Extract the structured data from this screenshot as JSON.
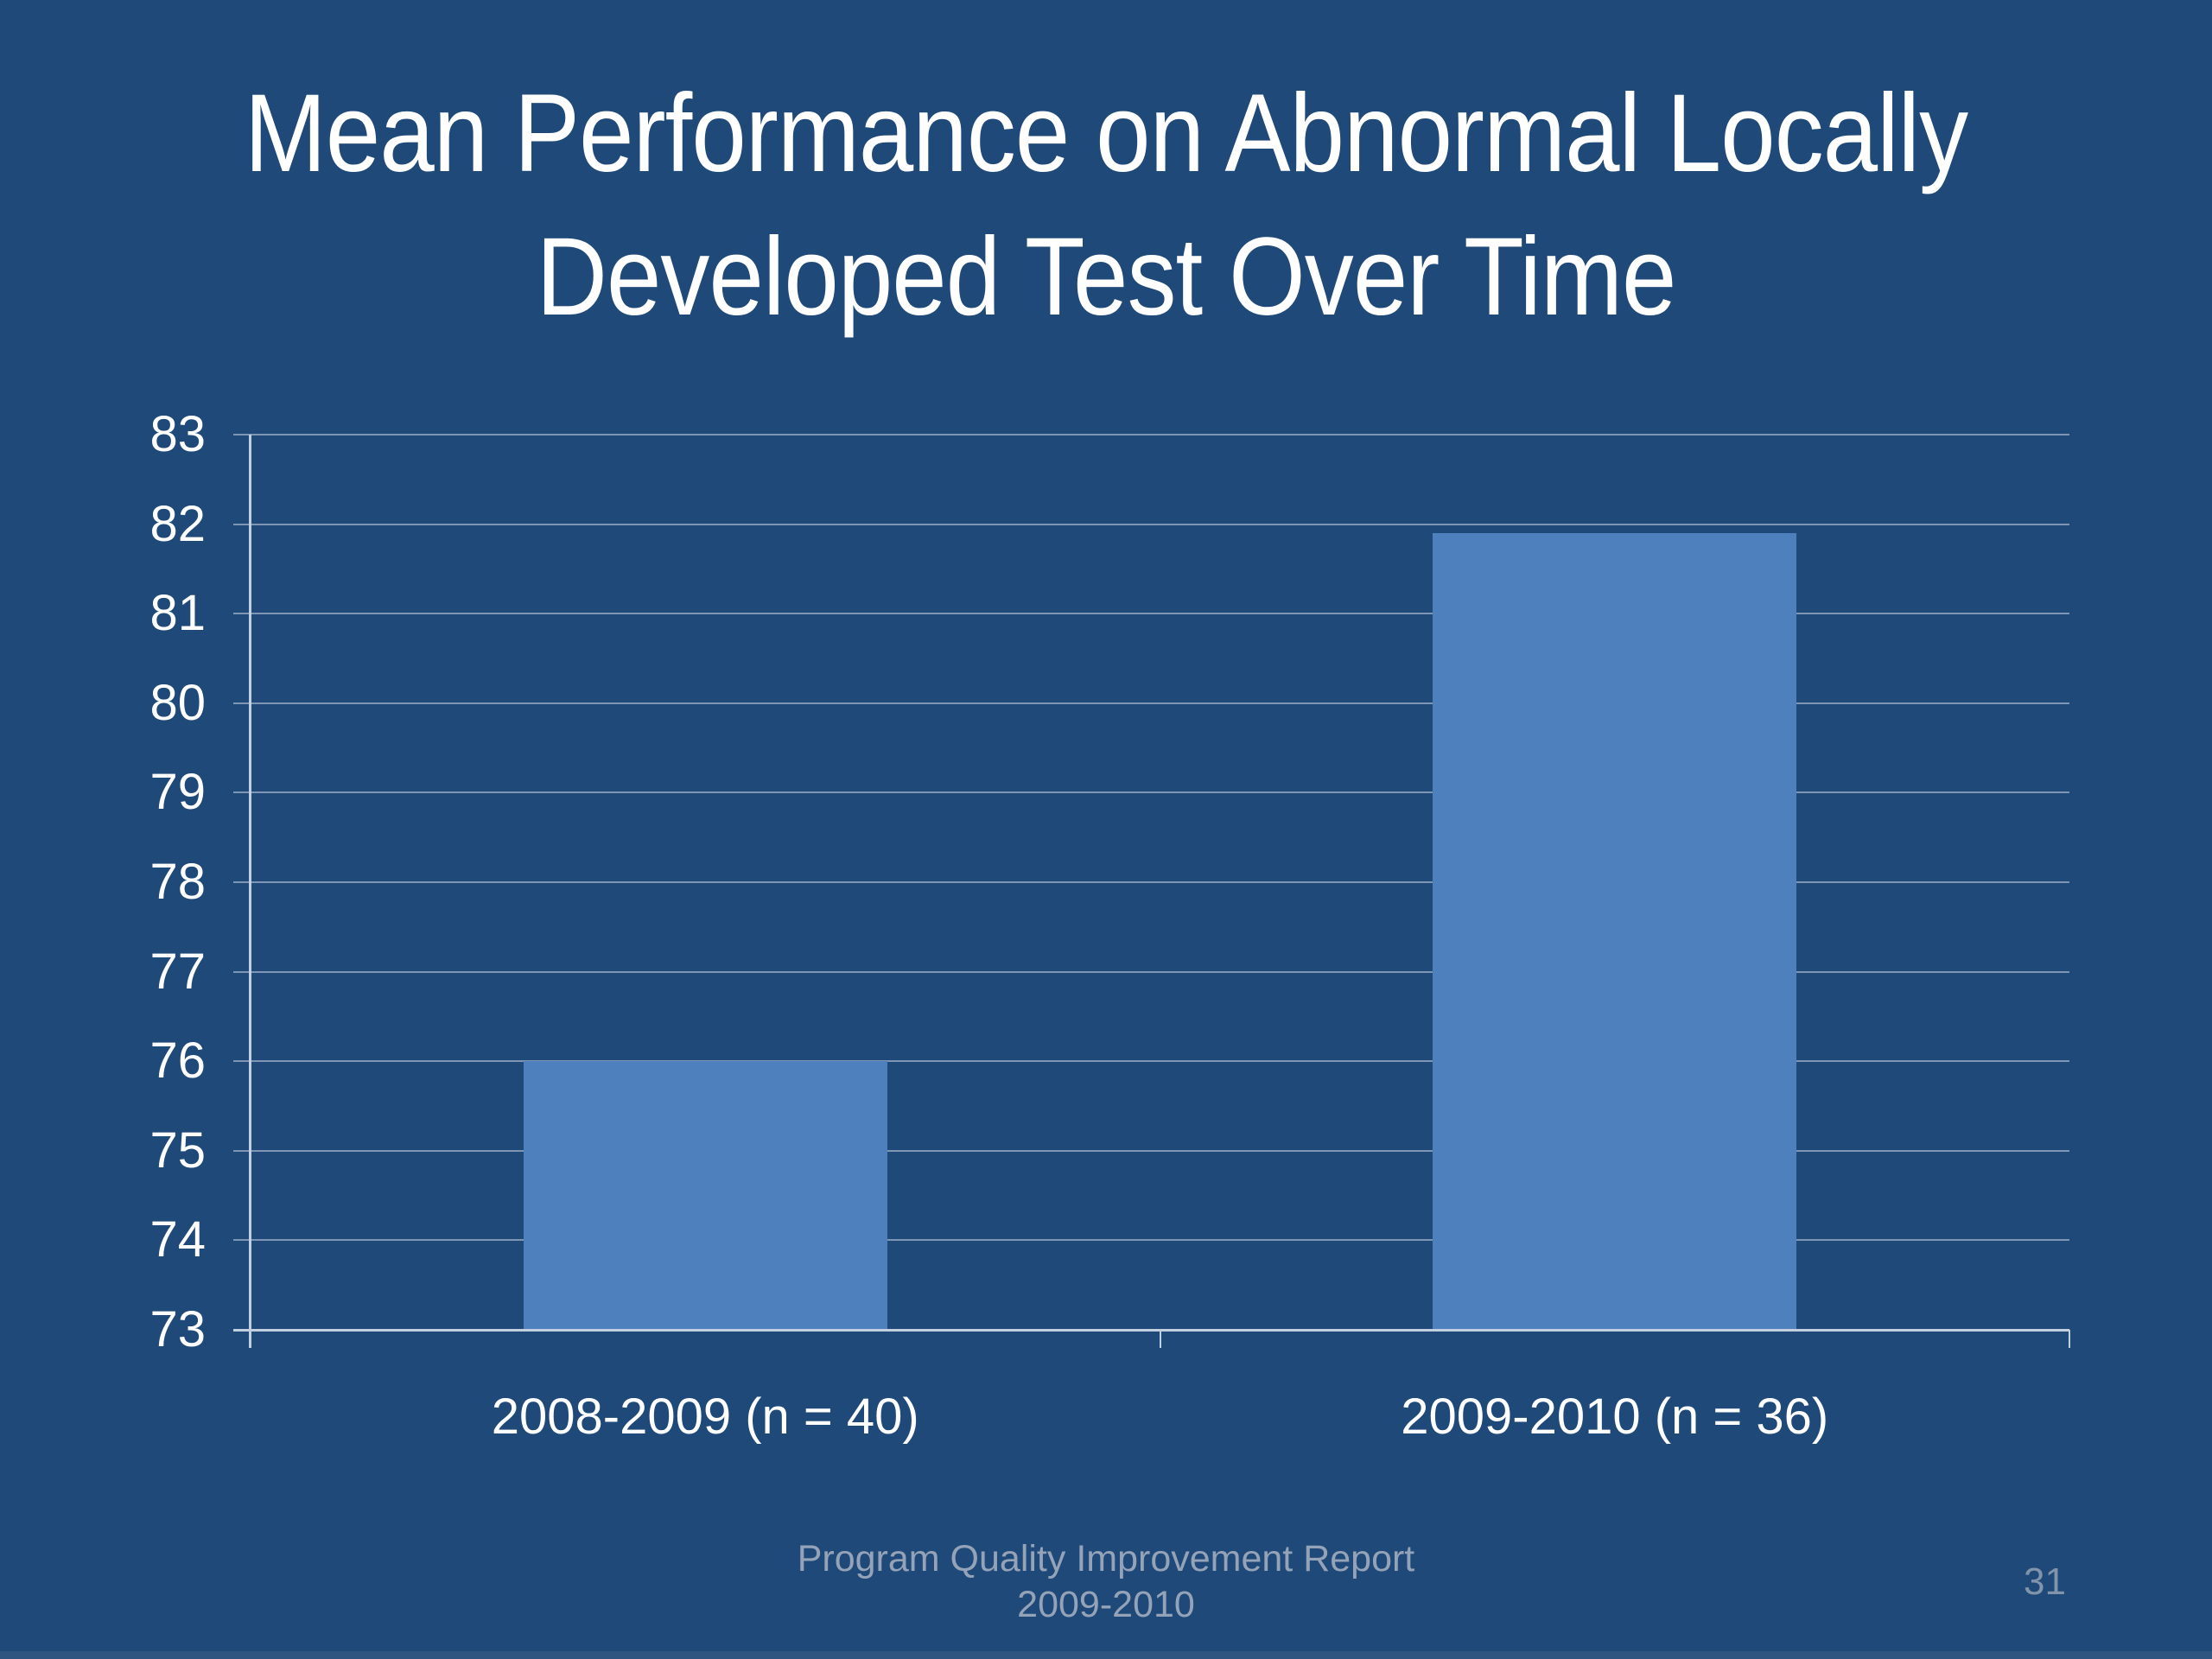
{
  "slide": {
    "title_line1": "Mean Performance on Abnormal Locally",
    "title_line2": "Developed Test Over Time",
    "footer_line1": "Program Quality Improvement Report",
    "footer_line2": "2009-2010",
    "page_number": "31"
  },
  "colors": {
    "background": "#1F4978",
    "bar": "#4E80BE",
    "gridline": "#7E96B4",
    "axis": "#C2CFDE",
    "title_text": "#FFFFFF",
    "tick_text": "#FFFFFF",
    "footer_text": "#95A3B9",
    "page_text": "#8294AC",
    "bottom_strip": "#2E5480"
  },
  "chart_data": {
    "type": "bar",
    "title": "Mean Performance on Abnormal Locally Developed Test Over Time",
    "categories": [
      "2008-2009 (n = 40)",
      "2009-2010 (n = 36)"
    ],
    "values": [
      76,
      81.9
    ],
    "xlabel": "",
    "ylabel": "",
    "ylim": [
      73,
      83
    ],
    "ytick_step": 1,
    "yticks": [
      73,
      74,
      75,
      76,
      77,
      78,
      79,
      80,
      81,
      82,
      83
    ],
    "grid": true,
    "legend": "none"
  }
}
